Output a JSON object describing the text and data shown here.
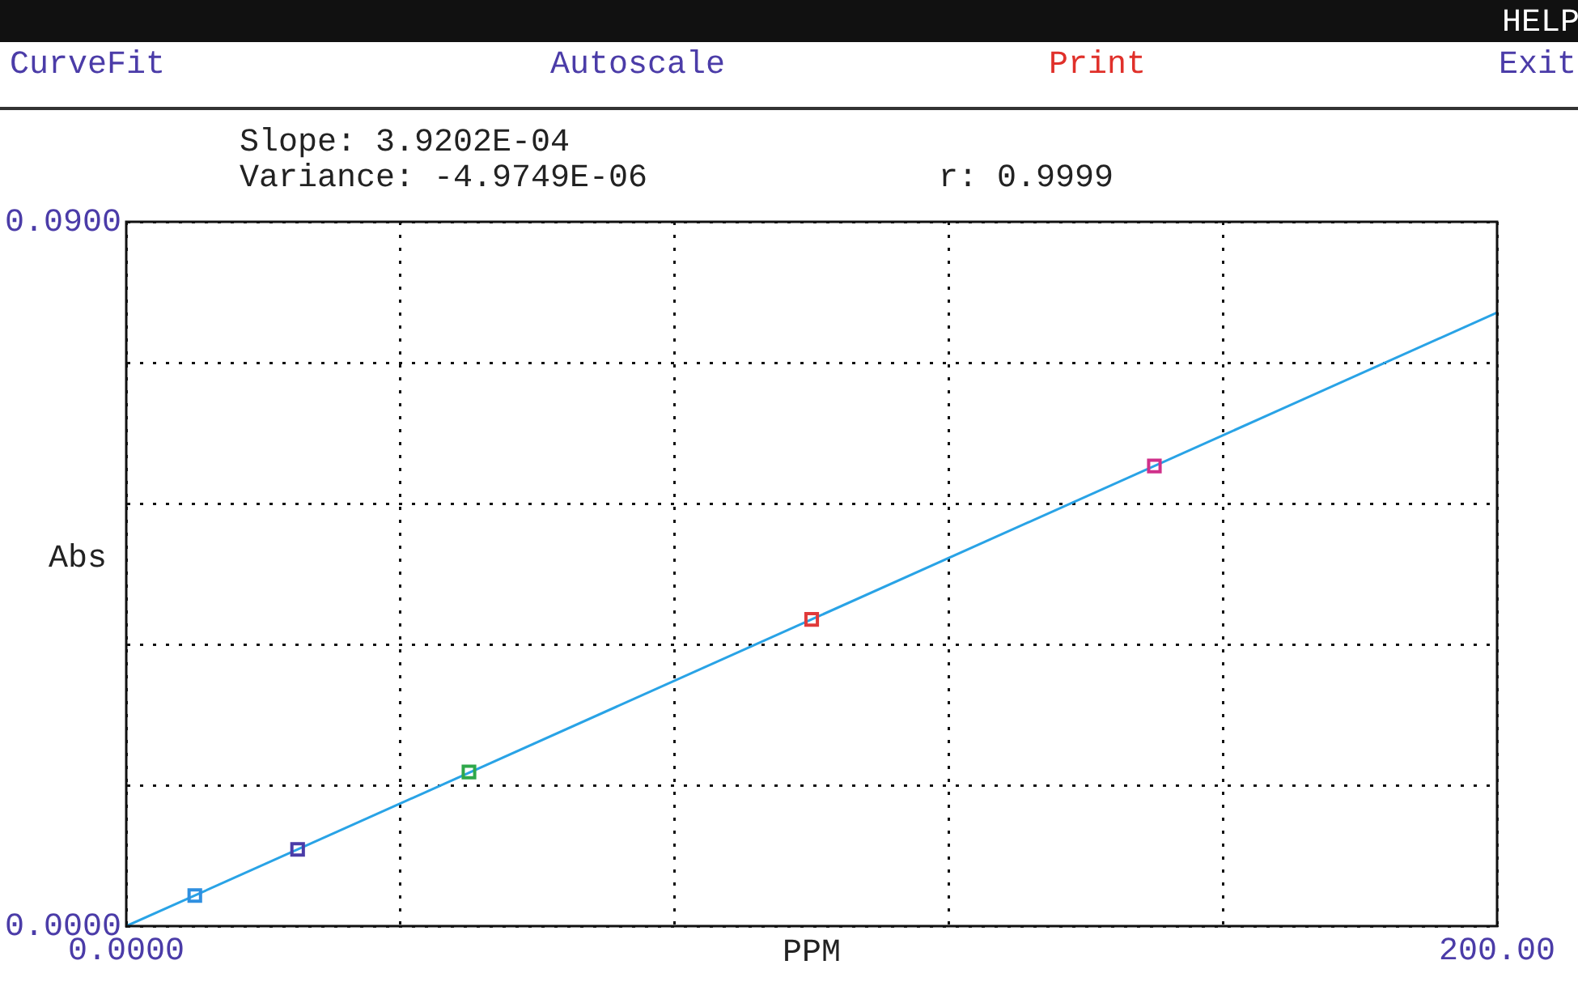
{
  "chart_data": {
    "type": "scatter",
    "xlabel": "PPM",
    "ylabel": "Abs",
    "annotations": [
      "CurveFit",
      "Autoscale",
      "Print",
      "HELP",
      "Exit",
      "Slope: 3.9202E-04",
      "Variance: -4.9749E-06",
      "r: 0.9999"
    ],
    "series": [
      {
        "type": "scatter",
        "x": [
          10,
          25,
          50,
          100,
          150
        ],
        "values": [
          0.0039,
          0.0098,
          0.0197,
          0.0392,
          0.0588
        ],
        "colors": [
          "#2f8fe0",
          "#4b3ca8",
          "#2ea84a",
          "#e03a3a",
          "#d0308a"
        ],
        "marker": "square"
      },
      {
        "type": "line",
        "x": [
          0,
          200
        ],
        "values": [
          0,
          0.0784
        ],
        "color": "#29a3e6",
        "marker": "none",
        "line_style": "solid"
      }
    ],
    "xlim": [
      0,
      200
    ],
    "ylim": [
      0,
      0.09
    ],
    "xticks": [
      {
        "value": 0,
        "label": "0.0000"
      },
      {
        "value": 40,
        "label": null
      },
      {
        "value": 80,
        "label": null
      },
      {
        "value": 120,
        "label": null
      },
      {
        "value": 160,
        "label": null
      },
      {
        "value": 200,
        "label": "200.00"
      }
    ],
    "yticks": [
      {
        "value": 0,
        "label": "0.0000"
      },
      {
        "value": 0.018,
        "label": null
      },
      {
        "value": 0.036,
        "label": null
      },
      {
        "value": 0.054,
        "label": null
      },
      {
        "value": 0.072,
        "label": null
      },
      {
        "value": 0.09,
        "label": "0.0900"
      }
    ],
    "grid": true,
    "legend": false
  }
}
